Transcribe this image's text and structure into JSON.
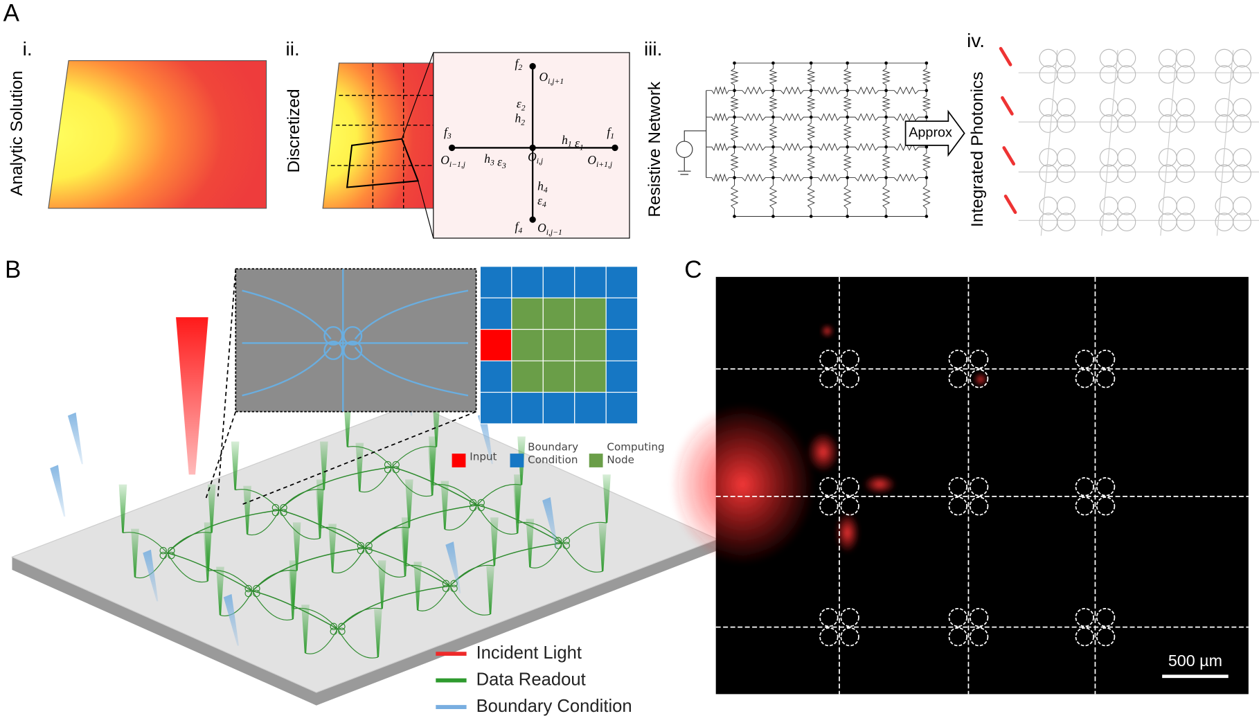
{
  "panel_a": {
    "label": "A",
    "steps": [
      {
        "numeral": "i.",
        "title": "Analytic Solution"
      },
      {
        "numeral": "ii.",
        "title": "Discretized"
      },
      {
        "numeral": "iii.",
        "title": "Resistive Network"
      },
      {
        "numeral": "iv.",
        "title": "Integrated Photonics"
      }
    ],
    "stencil_labels": [
      [
        {
          "t": "f",
          "s": "2"
        }
      ],
      [
        {
          "t": "O",
          "s": "i,j+1"
        }
      ],
      [
        {
          "t": "ε",
          "s": "2"
        }
      ],
      [
        {
          "t": "h",
          "s": "2"
        }
      ],
      [
        {
          "t": "f",
          "s": "3"
        }
      ],
      [
        {
          "t": "O",
          "s": "i−1,j"
        }
      ],
      [
        {
          "t": "h",
          "s": "3"
        },
        {
          "t": " ε",
          "s": "3"
        }
      ],
      [
        {
          "t": "O",
          "s": "i,j"
        }
      ],
      [
        {
          "t": "h",
          "s": "1"
        },
        {
          "t": " ε",
          "s": "1"
        }
      ],
      [
        {
          "t": "f",
          "s": "1"
        }
      ],
      [
        {
          "t": "O",
          "s": "i+1,j"
        }
      ],
      [
        {
          "t": "h",
          "s": "4"
        }
      ],
      [
        {
          "t": "ε",
          "s": "4"
        }
      ],
      [
        {
          "t": "f",
          "s": "4"
        }
      ],
      [
        {
          "t": "O",
          "s": "i,j−1"
        }
      ]
    ],
    "arrow_label": "Approx"
  },
  "panel_b": {
    "label": "B",
    "grid_legend": [
      "Input",
      "Boundary Condition",
      "Computing Node"
    ],
    "beam_legend": [
      "Incident Light",
      "Data Readout",
      "Boundary Condition"
    ]
  },
  "panel_c": {
    "label": "C",
    "scale_bar": "500 µm"
  }
}
